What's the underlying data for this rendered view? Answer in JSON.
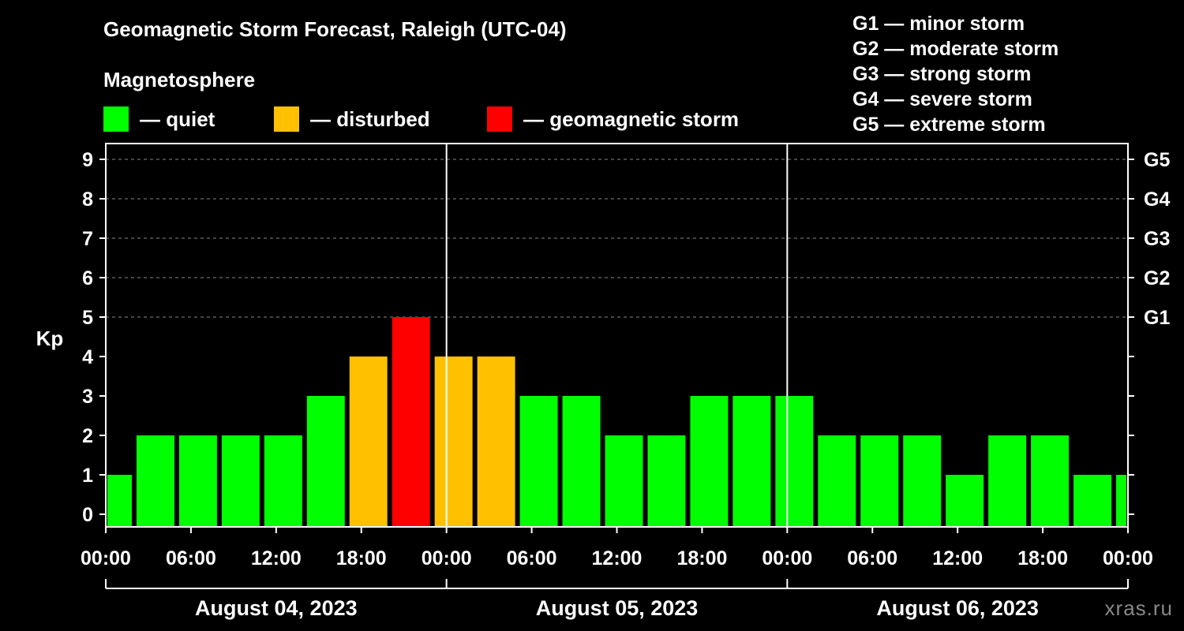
{
  "header": {
    "title": "Geomagnetic Storm Forecast, Raleigh (UTC-04)",
    "subtitle": "Magnetosphere"
  },
  "legend": [
    {
      "label": "— quiet",
      "color": "#00ff00"
    },
    {
      "label": "— disturbed",
      "color": "#ffc000"
    },
    {
      "label": "— geomagnetic storm",
      "color": "#ff0000"
    }
  ],
  "g_legend": [
    "G1 — minor storm",
    "G2 — moderate storm",
    "G3 — strong storm",
    "G4 — severe storm",
    "G5 — extreme storm"
  ],
  "watermark": "xras.ru",
  "chart_data": {
    "type": "bar",
    "title": "Geomagnetic Storm Forecast, Raleigh (UTC-04)",
    "ylabel": "Kp",
    "ylim": [
      0,
      9
    ],
    "y_ticks": [
      "0",
      "1",
      "2",
      "3",
      "4",
      "5",
      "6",
      "7",
      "8",
      "9"
    ],
    "right_axis_labels": [
      {
        "kp": 5,
        "label": "G1"
      },
      {
        "kp": 6,
        "label": "G2"
      },
      {
        "kp": 7,
        "label": "G3"
      },
      {
        "kp": 8,
        "label": "G4"
      },
      {
        "kp": 9,
        "label": "G5"
      }
    ],
    "x_range_hours": [
      0,
      72
    ],
    "x_tick_labels": [
      "00:00",
      "06:00",
      "12:00",
      "18:00",
      "00:00",
      "06:00",
      "12:00",
      "18:00",
      "00:00",
      "06:00",
      "12:00",
      "18:00",
      "00:00"
    ],
    "day_labels": [
      "August 04, 2023",
      "August 05, 2023",
      "August 06, 2023"
    ],
    "bars": [
      {
        "start_h": 0,
        "end_h": 2,
        "kp": 1
      },
      {
        "start_h": 2,
        "end_h": 5,
        "kp": 2
      },
      {
        "start_h": 5,
        "end_h": 8,
        "kp": 2
      },
      {
        "start_h": 8,
        "end_h": 11,
        "kp": 2
      },
      {
        "start_h": 11,
        "end_h": 14,
        "kp": 2
      },
      {
        "start_h": 14,
        "end_h": 17,
        "kp": 3
      },
      {
        "start_h": 17,
        "end_h": 20,
        "kp": 4
      },
      {
        "start_h": 20,
        "end_h": 23,
        "kp": 5
      },
      {
        "start_h": 23,
        "end_h": 26,
        "kp": 4
      },
      {
        "start_h": 26,
        "end_h": 29,
        "kp": 4
      },
      {
        "start_h": 29,
        "end_h": 32,
        "kp": 3
      },
      {
        "start_h": 32,
        "end_h": 35,
        "kp": 3
      },
      {
        "start_h": 35,
        "end_h": 38,
        "kp": 2
      },
      {
        "start_h": 38,
        "end_h": 41,
        "kp": 2
      },
      {
        "start_h": 41,
        "end_h": 44,
        "kp": 3
      },
      {
        "start_h": 44,
        "end_h": 47,
        "kp": 3
      },
      {
        "start_h": 47,
        "end_h": 50,
        "kp": 3
      },
      {
        "start_h": 50,
        "end_h": 53,
        "kp": 2
      },
      {
        "start_h": 53,
        "end_h": 56,
        "kp": 2
      },
      {
        "start_h": 56,
        "end_h": 59,
        "kp": 2
      },
      {
        "start_h": 59,
        "end_h": 62,
        "kp": 1
      },
      {
        "start_h": 62,
        "end_h": 65,
        "kp": 2
      },
      {
        "start_h": 65,
        "end_h": 68,
        "kp": 2
      },
      {
        "start_h": 68,
        "end_h": 71,
        "kp": 1
      },
      {
        "start_h": 71,
        "end_h": 72,
        "kp": 1
      }
    ],
    "colors": {
      "quiet": "#00ff00",
      "disturbed": "#ffc000",
      "storm": "#ff0000"
    }
  }
}
